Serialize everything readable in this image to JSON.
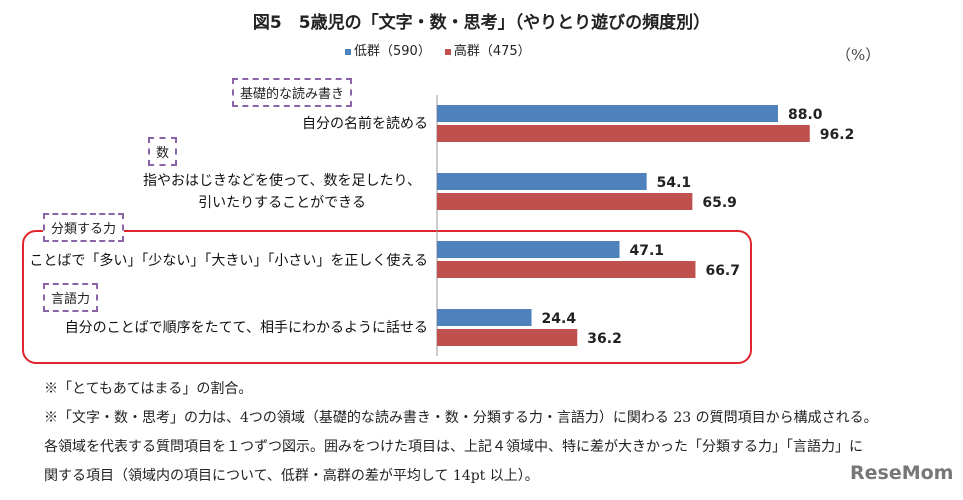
{
  "chart_data": {
    "type": "bar",
    "orientation": "horizontal",
    "title": "図5　5歳児の「文字・数・思考」（やりとり遊びの頻度別）",
    "unit": "（%）",
    "categories": [
      "自分の名前を読める",
      "指やおはじきなどを使って、数を足したり、\n引いたりすることができる",
      "ことばで「多い」「少ない」「大きい」「小さい」を正しく使える",
      "自分のことばで順序をたてて、相手にわかるように話せる"
    ],
    "domains": [
      "基礎的な読み書き",
      "数",
      "分類する力",
      "言語力"
    ],
    "series": [
      {
        "name": "低群（590）",
        "color": "#4f81bd",
        "values": [
          88.0,
          54.1,
          47.1,
          24.4
        ]
      },
      {
        "name": "高群（475）",
        "color": "#c0504d",
        "values": [
          96.2,
          65.9,
          66.7,
          36.2
        ]
      }
    ],
    "xlim": [
      0,
      100
    ],
    "grid": false,
    "legend": "top"
  },
  "notes": [
    "※「とてもあてはまる」の割合。",
    "※「文字・数・思考」の力は、4つの領域（基礎的な読み書き・数・分類する力・言語力）に関わる 23 の質問項目から構成される。",
    "各領域を代表する質問項目を１つずつ図示。囲みをつけた項目は、上記４領域中、特に差が大きかった「分類する力」「言語力」に",
    "関する項目（領域内の項目について、低群・高群の差が平均して 14pt 以上）。"
  ],
  "logo": "ReseMom"
}
